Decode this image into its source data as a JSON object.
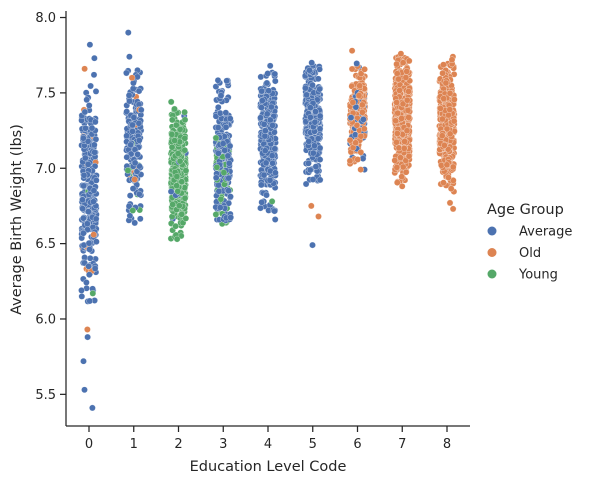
{
  "chart_data": {
    "type": "scatter",
    "subtype": "strip",
    "xlabel": "Education Level Code",
    "ylabel": "Average Birth Weight (lbs)",
    "categories": [
      "0",
      "1",
      "2",
      "3",
      "4",
      "5",
      "6",
      "7",
      "8"
    ],
    "ylim": [
      5.29,
      8.03
    ],
    "yticks": [
      "5.5",
      "6.0",
      "6.5",
      "7.0",
      "7.5",
      "8.0"
    ],
    "grid": false,
    "legend": {
      "title": "Age Group",
      "placement": "right",
      "entries": [
        {
          "label": "Average",
          "color": "#4C72B0"
        },
        {
          "label": "Old",
          "color": "#DD8452"
        },
        {
          "label": "Young",
          "color": "#55A868"
        }
      ]
    },
    "series": [
      {
        "name": "Average",
        "color": "#4C72B0",
        "distribution": [
          {
            "x": "0",
            "n": 280,
            "min": 6.1,
            "max": 7.55,
            "center": 6.85,
            "spread": 0.32
          },
          {
            "x": "1",
            "n": 170,
            "min": 6.63,
            "max": 7.65,
            "center": 7.2,
            "spread": 0.22
          },
          {
            "x": "2",
            "n": 15,
            "min": 6.65,
            "max": 7.45,
            "center": 7.0,
            "spread": 0.2
          },
          {
            "x": "3",
            "n": 230,
            "min": 6.65,
            "max": 7.6,
            "center": 7.1,
            "spread": 0.2
          },
          {
            "x": "4",
            "n": 340,
            "min": 6.7,
            "max": 7.65,
            "center": 7.2,
            "spread": 0.2
          },
          {
            "x": "5",
            "n": 320,
            "min": 6.85,
            "max": 7.68,
            "center": 7.3,
            "spread": 0.18
          },
          {
            "x": "6",
            "n": 60,
            "min": 6.97,
            "max": 7.72,
            "center": 7.35,
            "spread": 0.15
          }
        ],
        "points": [
          {
            "x": "0",
            "y": 7.82
          },
          {
            "x": "0",
            "y": 7.73
          },
          {
            "x": "0",
            "y": 7.62
          },
          {
            "x": "0",
            "y": 6.2
          },
          {
            "x": "0",
            "y": 6.15
          },
          {
            "x": "0",
            "y": 5.88
          },
          {
            "x": "0",
            "y": 5.72
          },
          {
            "x": "0",
            "y": 5.53
          },
          {
            "x": "0",
            "y": 5.41
          },
          {
            "x": "1",
            "y": 7.9
          },
          {
            "x": "1",
            "y": 7.74
          },
          {
            "x": "3",
            "y": 7.58
          },
          {
            "x": "4",
            "y": 7.68
          },
          {
            "x": "4",
            "y": 6.66
          },
          {
            "x": "5",
            "y": 7.7
          },
          {
            "x": "5",
            "y": 6.49
          }
        ]
      },
      {
        "name": "Old",
        "color": "#DD8452",
        "distribution": [
          {
            "x": "0",
            "n": 12,
            "min": 6.3,
            "max": 7.4,
            "center": 6.9,
            "spread": 0.3
          },
          {
            "x": "1",
            "n": 10,
            "min": 6.8,
            "max": 7.5,
            "center": 7.2,
            "spread": 0.2
          },
          {
            "x": "6",
            "n": 200,
            "min": 6.97,
            "max": 7.7,
            "center": 7.35,
            "spread": 0.16
          },
          {
            "x": "7",
            "n": 560,
            "min": 6.9,
            "max": 7.74,
            "center": 7.35,
            "spread": 0.17
          },
          {
            "x": "8",
            "n": 420,
            "min": 6.8,
            "max": 7.7,
            "center": 7.3,
            "spread": 0.17
          }
        ],
        "points": [
          {
            "x": "0",
            "y": 7.66
          },
          {
            "x": "0",
            "y": 5.93
          },
          {
            "x": "1",
            "y": 7.6
          },
          {
            "x": "5",
            "y": 6.75
          },
          {
            "x": "5",
            "y": 6.68
          },
          {
            "x": "6",
            "y": 7.78
          },
          {
            "x": "7",
            "y": 7.76
          },
          {
            "x": "7",
            "y": 6.88
          },
          {
            "x": "8",
            "y": 7.74
          },
          {
            "x": "8",
            "y": 7.72
          },
          {
            "x": "8",
            "y": 6.77
          },
          {
            "x": "8",
            "y": 6.73
          }
        ]
      },
      {
        "name": "Young",
        "color": "#55A868",
        "distribution": [
          {
            "x": "0",
            "n": 4,
            "min": 6.4,
            "max": 7.2,
            "center": 6.8,
            "spread": 0.2
          },
          {
            "x": "1",
            "n": 12,
            "min": 6.7,
            "max": 7.3,
            "center": 7.0,
            "spread": 0.15
          },
          {
            "x": "2",
            "n": 420,
            "min": 6.53,
            "max": 7.4,
            "center": 6.95,
            "spread": 0.18
          },
          {
            "x": "3",
            "n": 60,
            "min": 6.62,
            "max": 7.3,
            "center": 6.95,
            "spread": 0.15
          }
        ],
        "points": [
          {
            "x": "0",
            "y": 6.17
          },
          {
            "x": "1",
            "y": 6.72
          },
          {
            "x": "2",
            "y": 7.44
          },
          {
            "x": "2",
            "y": 6.53
          },
          {
            "x": "4",
            "y": 6.78
          }
        ]
      }
    ]
  }
}
